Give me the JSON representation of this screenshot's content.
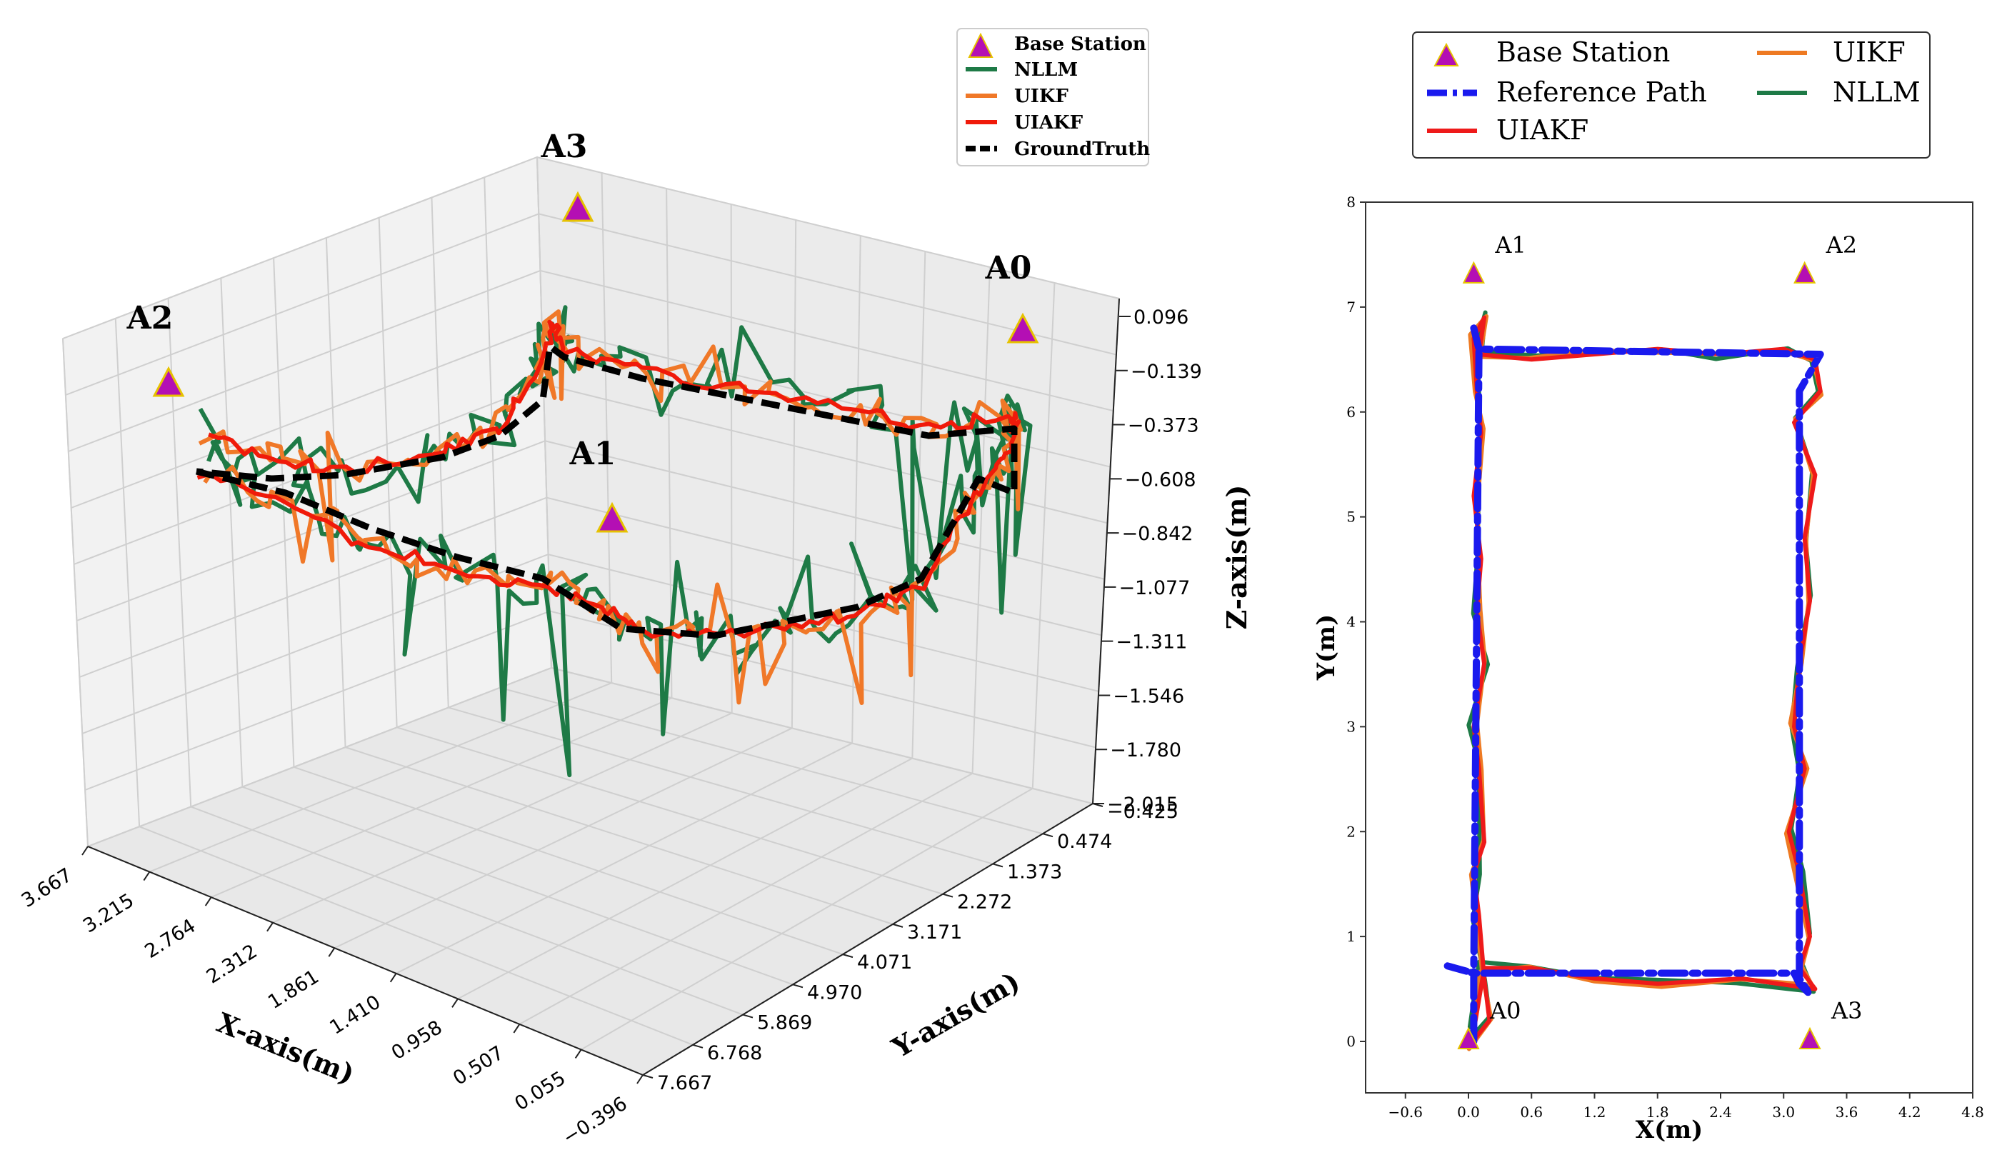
{
  "chart_data": [
    {
      "type": "line3d",
      "title": "",
      "xlabel": "X-axis(m)",
      "ylabel": "Y-axis(m)",
      "zlabel": "Z-axis(m)",
      "x_ticks": [
        "3.667",
        "3.215",
        "2.764",
        "2.312",
        "1.861",
        "1.410",
        "0.958",
        "0.507",
        "0.055",
        "−0.396"
      ],
      "y_ticks": [
        "−0.425",
        "0.474",
        "1.373",
        "2.272",
        "3.171",
        "4.071",
        "4.970",
        "5.869",
        "6.768",
        "7.667"
      ],
      "z_ticks": [
        "0.096",
        "−0.139",
        "−0.373",
        "−0.608",
        "−0.842",
        "−1.077",
        "−1.311",
        "−1.546",
        "−1.780",
        "−2.015"
      ],
      "xlim": [
        -0.396,
        3.667
      ],
      "ylim": [
        -0.425,
        7.667
      ],
      "zlim": [
        -2.015,
        0.096
      ],
      "anchors": [
        {
          "label": "A0",
          "x": 0.0,
          "y": 0.0,
          "z": -0.05
        },
        {
          "label": "A1",
          "x": 0.0,
          "y": 7.3,
          "z": -0.8
        },
        {
          "label": "A2",
          "x": 3.6,
          "y": 7.3,
          "z": -0.1
        },
        {
          "label": "A3",
          "x": 3.6,
          "y": 0.0,
          "z": 0.0
        }
      ],
      "legend": {
        "position": "top-right",
        "entries": [
          "Base Station",
          "NLLM",
          "UIKF",
          "UIAKF",
          "GroundTruth"
        ]
      },
      "series": [
        {
          "name": "GroundTruth",
          "color": "#000000",
          "style": "dashed",
          "path": [
            [
              0.1,
              0.7,
              -0.9
            ],
            [
              0.1,
              3.6,
              -0.85
            ],
            [
              0.1,
              6.6,
              -0.7
            ],
            [
              3.2,
              6.6,
              -0.55
            ],
            [
              3.2,
              3.6,
              -0.4
            ],
            [
              3.2,
              0.7,
              -0.2
            ],
            [
              0.1,
              0.7,
              -0.25
            ]
          ]
        },
        {
          "name": "UIAKF",
          "color": "#f01a0a",
          "style": "solid"
        },
        {
          "name": "UIKF",
          "color": "#f07828",
          "style": "solid"
        },
        {
          "name": "NLLM",
          "color": "#1e7a46",
          "style": "solid"
        }
      ]
    },
    {
      "type": "line",
      "title": "",
      "xlabel": "X(m)",
      "ylabel": "Y(m)",
      "xlim": [
        -1.0,
        4.8
      ],
      "ylim": [
        -0.5,
        8.0
      ],
      "x_ticks": [
        "−0.6",
        "0.0",
        "0.6",
        "1.2",
        "1.8",
        "2.4",
        "3.0",
        "3.6",
        "4.2",
        "4.8"
      ],
      "x_tick_values": [
        -0.6,
        0.0,
        0.6,
        1.2,
        1.8,
        2.4,
        3.0,
        3.6,
        4.2,
        4.8
      ],
      "y_ticks": [
        "0",
        "1",
        "2",
        "3",
        "4",
        "5",
        "6",
        "7",
        "8"
      ],
      "y_tick_values": [
        0,
        1,
        2,
        3,
        4,
        5,
        6,
        7,
        8
      ],
      "anchors": [
        {
          "label": "A0",
          "x": 0.0,
          "y": 0.0
        },
        {
          "label": "A1",
          "x": 0.05,
          "y": 7.3
        },
        {
          "label": "A2",
          "x": 3.2,
          "y": 7.3
        },
        {
          "label": "A3",
          "x": 3.25,
          "y": 0.0
        }
      ],
      "legend": {
        "position": "top",
        "entries": [
          "Base Station",
          "Reference Path",
          "UIAKF",
          "UIKF",
          "NLLM"
        ]
      },
      "series": [
        {
          "name": "Reference Path",
          "color": "#1a1aee",
          "style": "dashdot",
          "path": [
            [
              0.05,
              0.0
            ],
            [
              0.05,
              0.65
            ],
            [
              -0.2,
              0.72
            ],
            [
              0.05,
              0.65
            ],
            [
              3.1,
              0.65
            ],
            [
              3.15,
              0.55
            ],
            [
              3.25,
              0.45
            ],
            [
              3.15,
              0.6
            ],
            [
              3.15,
              6.2
            ],
            [
              3.35,
              6.55
            ],
            [
              0.1,
              6.6
            ],
            [
              0.05,
              6.8
            ],
            [
              0.1,
              6.6
            ],
            [
              0.05,
              0.65
            ]
          ]
        },
        {
          "name": "UIAKF",
          "color": "#ee1a1a",
          "style": "solid",
          "path": [
            [
              0.0,
              -0.05
            ],
            [
              0.2,
              0.2
            ],
            [
              0.15,
              0.6
            ],
            [
              0.1,
              1.2
            ],
            [
              0.05,
              1.6
            ],
            [
              0.15,
              1.9
            ],
            [
              0.1,
              2.6
            ],
            [
              0.05,
              3.0
            ],
            [
              0.15,
              3.6
            ],
            [
              0.08,
              4.1
            ],
            [
              0.12,
              4.6
            ],
            [
              0.05,
              5.2
            ],
            [
              0.12,
              5.8
            ],
            [
              0.08,
              6.2
            ],
            [
              0.05,
              6.7
            ],
            [
              0.15,
              6.9
            ],
            [
              0.1,
              6.55
            ],
            [
              0.6,
              6.5
            ],
            [
              1.2,
              6.55
            ],
            [
              1.8,
              6.6
            ],
            [
              2.4,
              6.55
            ],
            [
              3.0,
              6.6
            ],
            [
              3.3,
              6.5
            ],
            [
              3.35,
              6.2
            ],
            [
              3.1,
              5.9
            ],
            [
              3.3,
              5.4
            ],
            [
              3.2,
              4.8
            ],
            [
              3.25,
              4.2
            ],
            [
              3.15,
              3.6
            ],
            [
              3.1,
              3.0
            ],
            [
              3.2,
              2.6
            ],
            [
              3.05,
              2.0
            ],
            [
              3.15,
              1.6
            ],
            [
              3.25,
              1.0
            ],
            [
              3.15,
              0.7
            ],
            [
              3.3,
              0.5
            ],
            [
              2.6,
              0.6
            ],
            [
              1.8,
              0.55
            ],
            [
              1.2,
              0.6
            ],
            [
              0.6,
              0.7
            ],
            [
              0.15,
              0.7
            ],
            [
              0.05,
              0.1
            ]
          ]
        },
        {
          "name": "UIKF",
          "color": "#ee7a22",
          "style": "solid"
        },
        {
          "name": "NLLM",
          "color": "#1e7a46",
          "style": "solid"
        }
      ]
    }
  ]
}
